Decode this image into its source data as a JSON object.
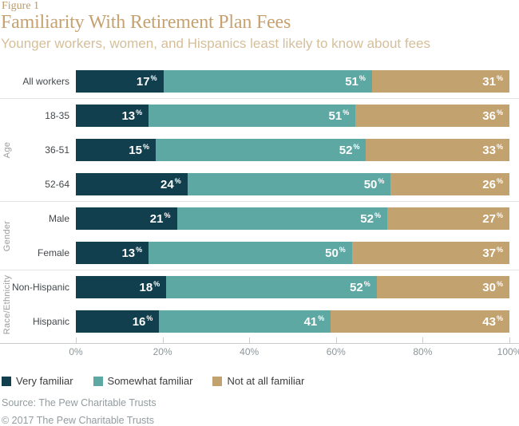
{
  "figure_label": "Figure 1",
  "title": "Familiarity With Retirement Plan Fees",
  "subtitle": "Younger workers, women, and Hispanics least likely to know about fees",
  "chart_data": {
    "type": "bar",
    "stacked": true,
    "orientation": "horizontal",
    "unit": "%",
    "title": "Familiarity With Retirement Plan Fees",
    "series": [
      {
        "name": "Very familiar",
        "color": "#123f4e",
        "values": [
          17,
          13,
          15,
          24,
          21,
          13,
          18,
          16
        ]
      },
      {
        "name": "Somewhat familiar",
        "color": "#5ea8a4",
        "values": [
          51,
          51,
          52,
          50,
          52,
          50,
          52,
          41
        ]
      },
      {
        "name": "Not at all familiar",
        "color": "#c2a26f",
        "values": [
          31,
          36,
          33,
          26,
          27,
          37,
          30,
          43
        ]
      }
    ],
    "categories": [
      "All workers",
      "18-35",
      "36-51",
      "52-64",
      "Male",
      "Female",
      "Non-Hispanic",
      "Hispanic"
    ],
    "groups": [
      {
        "label": "",
        "rows": [
          {
            "category": "All workers",
            "values": [
              17,
              51,
              31
            ]
          }
        ]
      },
      {
        "label": "Age",
        "rows": [
          {
            "category": "18-35",
            "values": [
              13,
              51,
              36
            ]
          },
          {
            "category": "36-51",
            "values": [
              15,
              52,
              33
            ]
          },
          {
            "category": "52-64",
            "values": [
              24,
              50,
              26
            ]
          }
        ]
      },
      {
        "label": "Gender",
        "rows": [
          {
            "category": "Male",
            "values": [
              21,
              52,
              27
            ]
          },
          {
            "category": "Female",
            "values": [
              13,
              50,
              37
            ]
          }
        ]
      },
      {
        "label": "Race/Ethnicity",
        "rows": [
          {
            "category": "Non-Hispanic",
            "values": [
              18,
              52,
              30
            ]
          },
          {
            "category": "Hispanic",
            "values": [
              16,
              41,
              43
            ]
          }
        ]
      }
    ],
    "x_axis": {
      "ticks": [
        "0%",
        "20%",
        "40%",
        "60%",
        "80%",
        "100%"
      ],
      "range": [
        0,
        100
      ],
      "grid": false
    },
    "legend_position": "bottom",
    "value_suffix": "%"
  },
  "legend": [
    {
      "label": "Very familiar",
      "color": "#123f4e"
    },
    {
      "label": "Somewhat familiar",
      "color": "#5ea8a4"
    },
    {
      "label": "Not at all familiar",
      "color": "#c2a26f"
    }
  ],
  "footer": {
    "source": "Source: The Pew Charitable Trusts",
    "copyright": "© 2017 The Pew Charitable Trusts"
  },
  "colors": {
    "title": "#c6a271",
    "subtitle": "#d5bf9a",
    "category_label": "#43484b",
    "group_label": "#9b9b9b",
    "axis_label": "#8d9699",
    "axis_line": "#cbcbcb",
    "separator": "#e4e4e4",
    "value_text": "#ffffff"
  }
}
